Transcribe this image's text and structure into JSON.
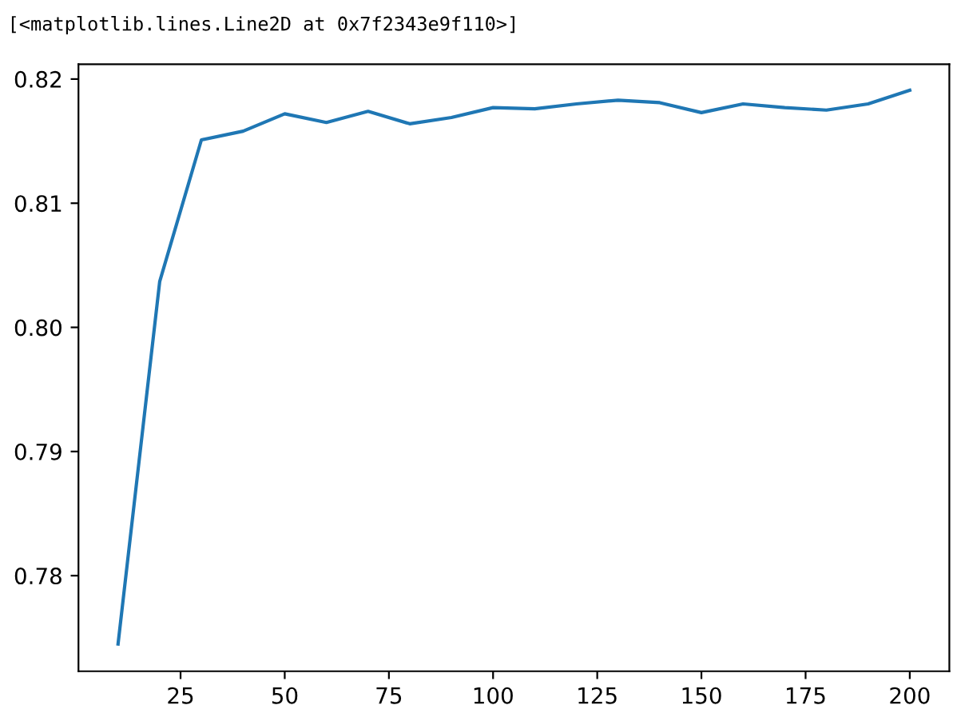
{
  "chart_data": {
    "type": "line",
    "annotations": [
      "[<matplotlib.lines.Line2D at 0x7f2343e9f110>]"
    ],
    "x": [
      10,
      20,
      30,
      40,
      50,
      60,
      70,
      80,
      90,
      100,
      110,
      120,
      130,
      140,
      150,
      160,
      170,
      180,
      190,
      200
    ],
    "series": [
      {
        "color": "#1f77b4",
        "values": [
          0.7745,
          0.8037,
          0.8151,
          0.8158,
          0.8172,
          0.8165,
          0.8174,
          0.8164,
          0.8169,
          0.8177,
          0.8176,
          0.818,
          0.8183,
          0.8181,
          0.8173,
          0.818,
          0.8177,
          0.8175,
          0.818,
          0.8191
        ]
      }
    ],
    "xlim": [
      0.5,
      209.5
    ],
    "ylim": [
      0.7723,
      0.8212
    ],
    "xticks": [
      25,
      50,
      75,
      100,
      125,
      150,
      175,
      200
    ],
    "yticks": [
      {
        "value": 0.78,
        "label": "0.78"
      },
      {
        "value": 0.79,
        "label": "0.79"
      },
      {
        "value": 0.8,
        "label": "0.80"
      },
      {
        "value": 0.81,
        "label": "0.81"
      },
      {
        "value": 0.82,
        "label": "0.82"
      }
    ],
    "grid": false,
    "legend": false
  }
}
